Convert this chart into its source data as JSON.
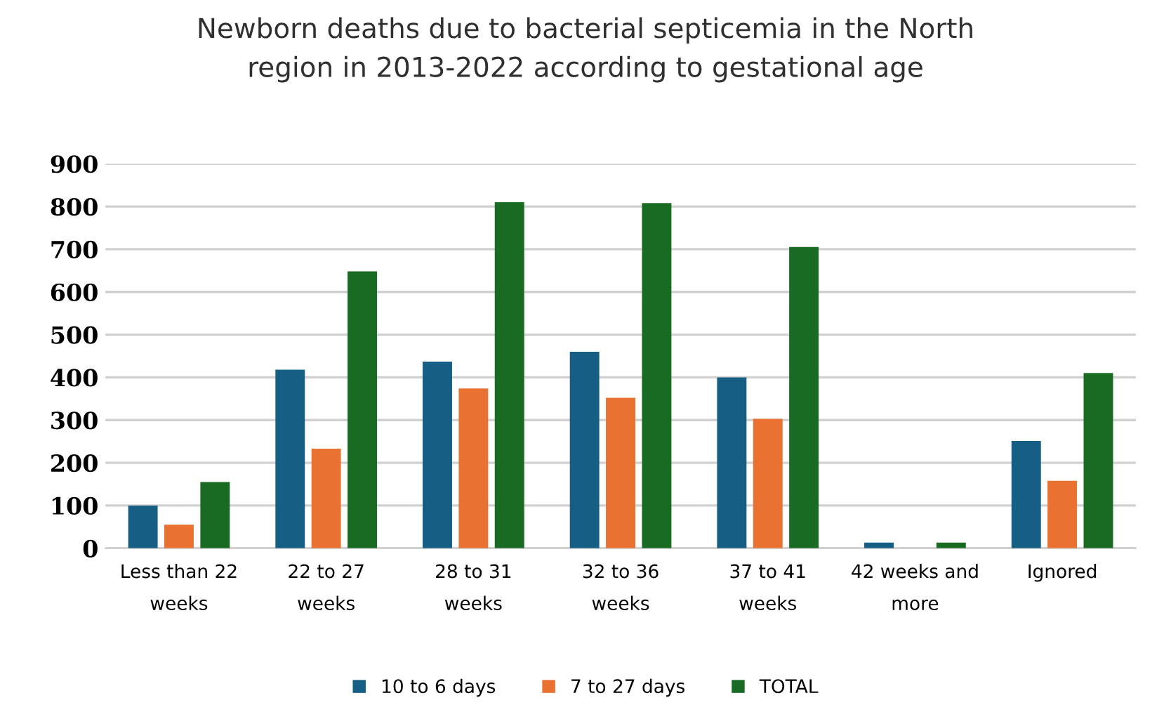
{
  "chart_data": {
    "type": "bar",
    "title": "Newborn deaths due to bacterial septicemia in the North\nregion in 2013-2022 according to gestational age",
    "categories": [
      "Less than 22\nweeks",
      "22 to 27\nweeks",
      "28 to 31\nweeks",
      "32 to 36\nweeks",
      "37 to 41\nweeks",
      "42 weeks and\nmore",
      "Ignored"
    ],
    "series": [
      {
        "name": "10 to 6 days",
        "color": "#165e83",
        "values": [
          100,
          418,
          437,
          460,
          400,
          13,
          251
        ]
      },
      {
        "name": "7 to 27 days",
        "color": "#e97132",
        "values": [
          55,
          233,
          374,
          352,
          303,
          0,
          158
        ]
      },
      {
        "name": "TOTAL",
        "color": "#196b24",
        "values": [
          155,
          648,
          810,
          808,
          705,
          13,
          410
        ]
      }
    ],
    "ylim": [
      0,
      900
    ],
    "yticks": [
      0,
      100,
      200,
      300,
      400,
      500,
      600,
      700,
      800,
      900
    ],
    "grid": "y",
    "legend": "bottom"
  }
}
